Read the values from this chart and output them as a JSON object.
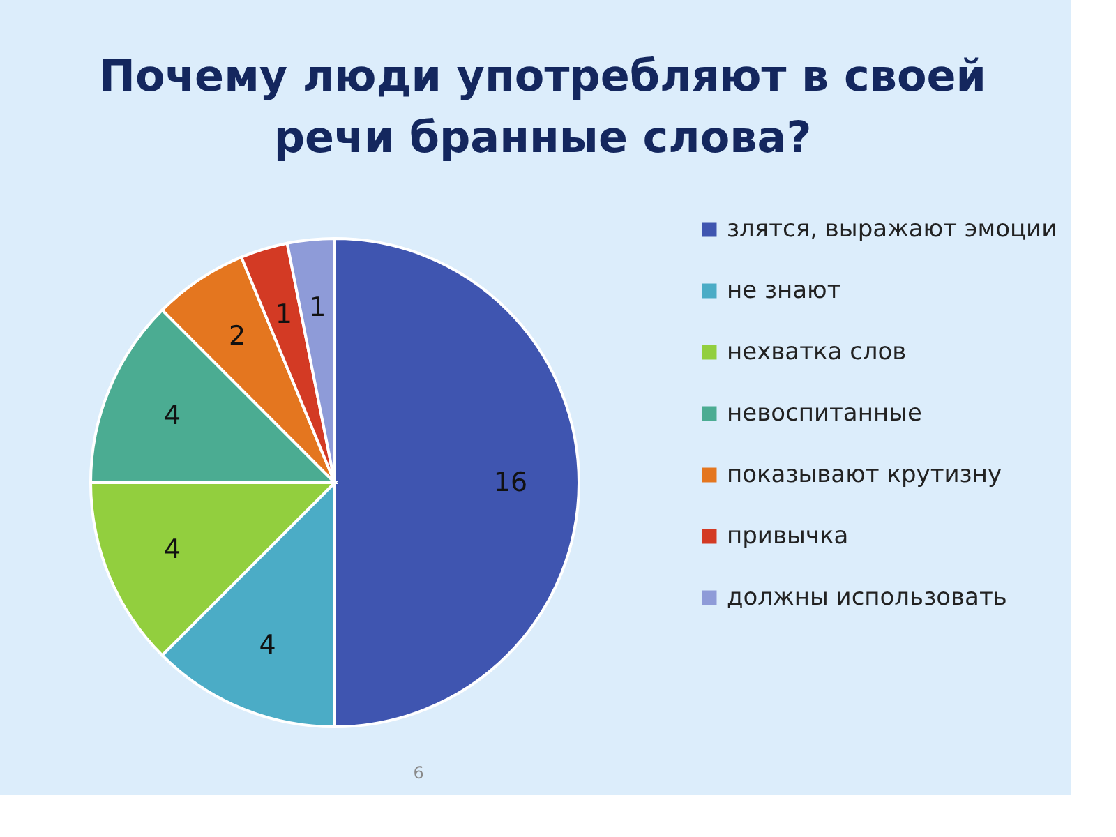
{
  "chart_data": {
    "type": "pie",
    "title": "Почему люди употребляют в своей речи бранные слова?",
    "categories": [
      "злятся, выражают эмоции",
      "не знают",
      "нехватка слов",
      "невоспитанные",
      "показывают крутизну",
      "привычка",
      "должны использовать"
    ],
    "values": [
      16,
      4,
      4,
      4,
      2,
      1,
      1
    ],
    "colors": [
      "#3f55b0",
      "#4bacc6",
      "#92cf3e",
      "#4bac92",
      "#e4761f",
      "#d33a24",
      "#8e9bd8"
    ],
    "data_labels": true,
    "legend": "right",
    "annotations": [
      "6"
    ]
  }
}
